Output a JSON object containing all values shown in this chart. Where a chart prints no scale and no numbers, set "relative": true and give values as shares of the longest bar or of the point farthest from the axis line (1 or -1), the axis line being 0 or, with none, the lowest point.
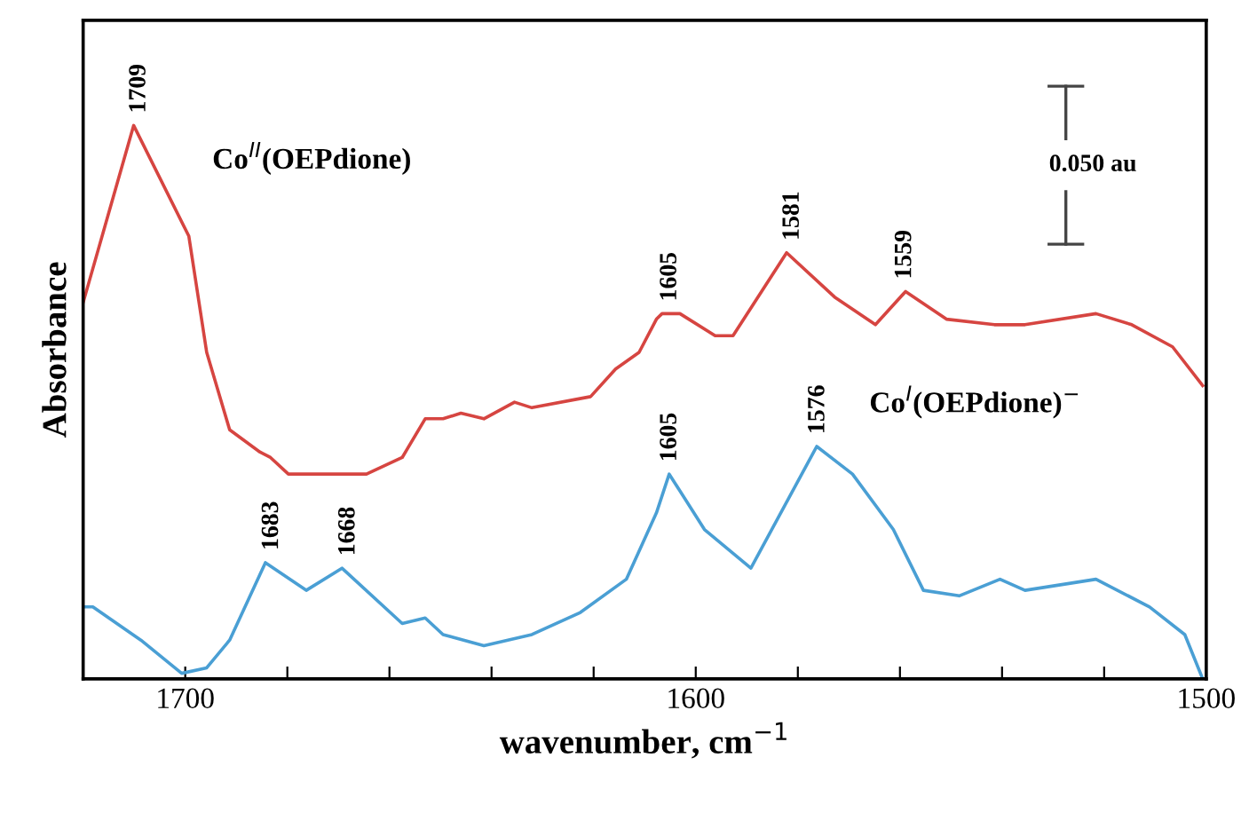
{
  "chart_data": {
    "type": "line",
    "relative": true,
    "xlabel": "wavenumber, cm$^{−1}$",
    "ylabel": "Absorbance",
    "xlim": [
      1720,
      1500
    ],
    "xticks": [
      1700,
      {
        "value": 1680,
        "label": null
      },
      {
        "value": 1660,
        "label": null
      },
      {
        "value": 1640,
        "label": null
      },
      {
        "value": 1620,
        "label": null
      },
      1600,
      {
        "value": 1580,
        "label": null
      },
      {
        "value": 1560,
        "label": null
      },
      {
        "value": 1540,
        "label": null
      },
      {
        "value": 1520,
        "label": null
      },
      1500
    ],
    "grid": false,
    "marker": "none",
    "line_style": "solid",
    "series": [
      {
        "name": "Co$^{II}$(OEPdione)",
        "color": "#d64541",
        "x": [
          1720,
          1710.1,
          1699.3,
          1695.8,
          1691.3,
          1685.4,
          1683.3,
          1679.8,
          1669.3,
          1664.5,
          1657.5,
          1653,
          1649.5,
          1646,
          1641.5,
          1635.5,
          1632.1,
          1620.6,
          1615.7,
          1611.1,
          1607.7,
          1606.6,
          1603.1,
          1596.2,
          1592.7,
          1582.2,
          1572.8,
          1564.8,
          1558.9,
          1550.9,
          1541.5,
          1535.5,
          1521.6,
          1514.6,
          1506.6,
          1500.7
        ],
        "values": [
          0.68,
          1.0,
          0.8,
          0.59,
          0.45,
          0.41,
          0.4,
          0.37,
          0.37,
          0.37,
          0.4,
          0.47,
          0.47,
          0.48,
          0.47,
          0.5,
          0.49,
          0.51,
          0.56,
          0.59,
          0.65,
          0.66,
          0.66,
          0.62,
          0.62,
          0.77,
          0.69,
          0.64,
          0.7,
          0.65,
          0.64,
          0.64,
          0.66,
          0.64,
          0.6,
          0.53
        ]
      },
      {
        "name": "Co$^{I}$(OEPdione)$^{−}$",
        "color": "#4a9fd4",
        "x": [
          1720,
          1718.1,
          1708.7,
          1700.7,
          1695.8,
          1691.3,
          1684.3,
          1676.3,
          1669.3,
          1657.5,
          1653,
          1649.5,
          1641.5,
          1632.1,
          1622.6,
          1613.6,
          1607.7,
          1605.2,
          1598.3,
          1589.2,
          1576.3,
          1569.3,
          1561.3,
          1555.4,
          1548.4,
          1540.4,
          1535.5,
          1521.6,
          1511.1,
          1504.2,
          1500.7
        ],
        "values": [
          0.13,
          0.13,
          0.07,
          0.01,
          0.02,
          0.07,
          0.21,
          0.16,
          0.2,
          0.1,
          0.11,
          0.08,
          0.06,
          0.08,
          0.12,
          0.18,
          0.3,
          0.37,
          0.27,
          0.2,
          0.42,
          0.37,
          0.27,
          0.16,
          0.15,
          0.18,
          0.16,
          0.18,
          0.13,
          0.08,
          0.0
        ]
      }
    ],
    "annotations": [
      {
        "text": "1709",
        "x": 1709,
        "y": 1.0
      },
      {
        "text": "1605",
        "x": 1605,
        "y": 0.66
      },
      {
        "text": "1581",
        "x": 1581,
        "y": 0.77
      },
      {
        "text": "1559",
        "x": 1559,
        "y": 0.7
      },
      {
        "text": "1683",
        "x": 1683,
        "y": 0.21
      },
      {
        "text": "1668",
        "x": 1668,
        "y": 0.2
      },
      {
        "text": "1605",
        "x": 1605,
        "y": 0.37
      },
      {
        "text": "1576",
        "x": 1576,
        "y": 0.42
      },
      "0.050 au"
    ]
  }
}
